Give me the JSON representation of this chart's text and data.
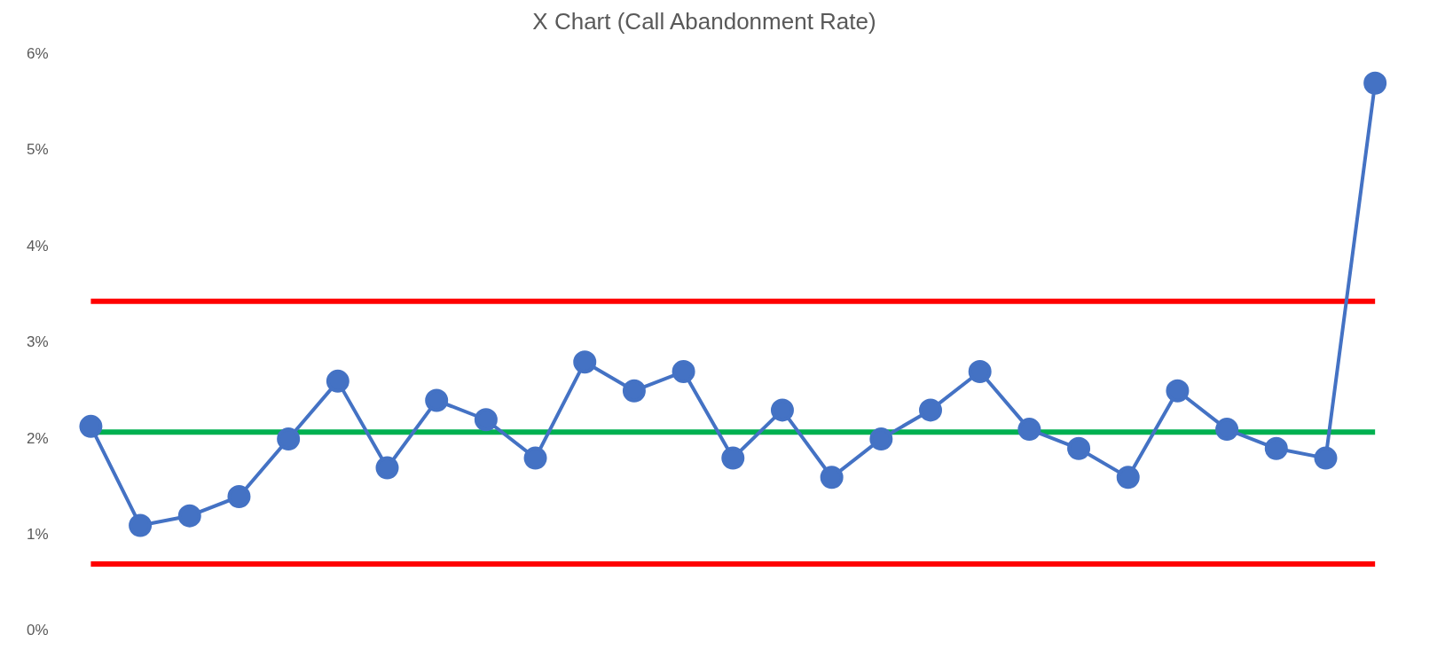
{
  "chart_data": {
    "type": "line",
    "title": "X Chart (Call Abandonment Rate)",
    "categories": [
      null,
      null,
      null,
      null,
      null,
      null,
      null,
      null,
      null,
      null,
      null,
      null,
      null,
      null,
      null,
      null,
      null,
      null,
      null,
      null,
      null,
      null,
      null,
      null,
      null,
      null,
      null
    ],
    "series": [
      {
        "color": "#4472c4",
        "values": [
          2.13,
          1.1,
          1.2,
          1.4,
          2.0,
          2.6,
          1.7,
          2.4,
          2.2,
          1.8,
          2.8,
          2.5,
          2.7,
          1.8,
          2.3,
          1.6,
          2.0,
          2.3,
          2.7,
          2.1,
          1.9,
          1.6,
          2.5,
          2.1,
          1.9,
          1.8,
          5.7
        ]
      }
    ],
    "ylim": [
      0,
      6
    ],
    "yticks": [
      {
        "value": 0,
        "label": "0%"
      },
      {
        "value": 1,
        "label": "1%"
      },
      {
        "value": 2,
        "label": "2%"
      },
      {
        "value": 3,
        "label": "3%"
      },
      {
        "value": 4,
        "label": "4%"
      },
      {
        "value": 5,
        "label": "5%"
      },
      {
        "value": 6,
        "label": "6%"
      }
    ],
    "ref_lines": [
      {
        "axis": "y",
        "value": 3.43,
        "color": "#ff0000"
      },
      {
        "axis": "y",
        "value": 2.07,
        "color": "#00b050"
      },
      {
        "axis": "y",
        "value": 0.7,
        "color": "#ff0000"
      }
    ],
    "grid": false,
    "legend": false,
    "marker": "circle",
    "line_style": "solid",
    "tick_labels": "y"
  }
}
